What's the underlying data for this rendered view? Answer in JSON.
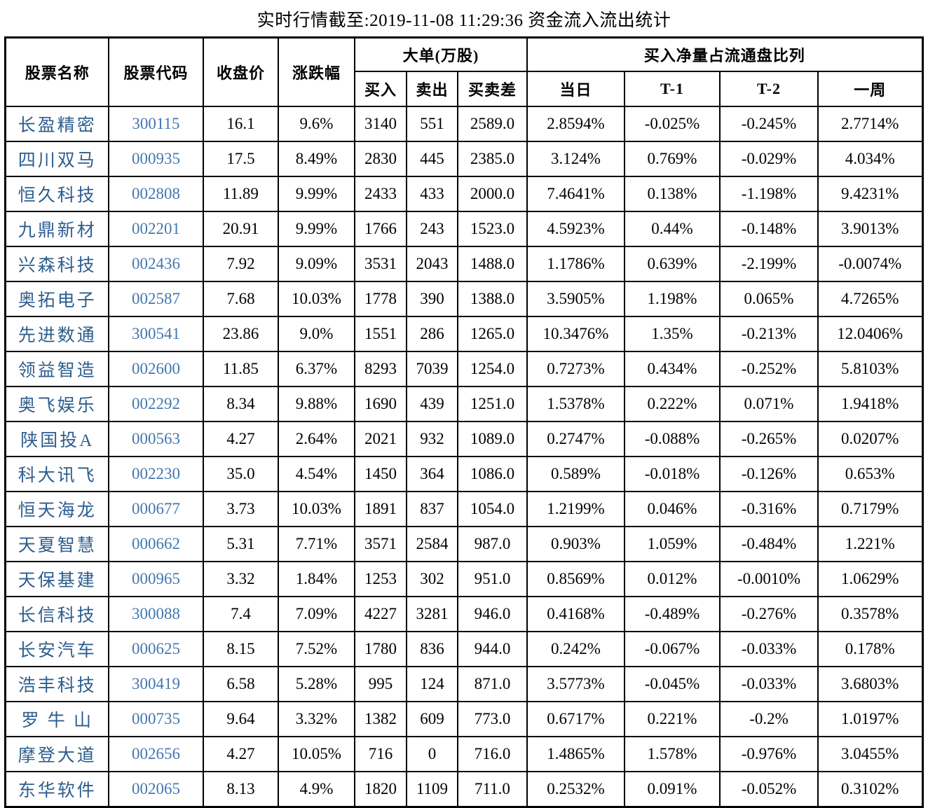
{
  "title": "实时行情截至:2019-11-08 11:29:36 资金流入流出统计",
  "colors": {
    "stock_name_text": "#2d5e8e",
    "stock_code_text": "#4377b0",
    "table_border": "#000000",
    "data_text": "#000000",
    "background": "#ffffff"
  },
  "table": {
    "header": {
      "stock_name": "股票名称",
      "stock_code": "股票代码",
      "close_price": "收盘价",
      "change_pct": "涨跌幅",
      "big_order_group": "大单(万股)",
      "buy": "买入",
      "sell": "卖出",
      "buy_sell_diff": "买卖差",
      "net_buy_group": "买入净量占流通盘比列",
      "today": "当日",
      "t_minus_1": "T-1",
      "t_minus_2": "T-2",
      "week": "一周"
    },
    "rows": [
      [
        "长盈精密",
        "300115",
        "16.1",
        "9.6%",
        "3140",
        "551",
        "2589.0",
        "2.8594%",
        "-0.025%",
        "-0.245%",
        "2.7714%"
      ],
      [
        "四川双马",
        "000935",
        "17.5",
        "8.49%",
        "2830",
        "445",
        "2385.0",
        "3.124%",
        "0.769%",
        "-0.029%",
        "4.034%"
      ],
      [
        "恒久科技",
        "002808",
        "11.89",
        "9.99%",
        "2433",
        "433",
        "2000.0",
        "7.4641%",
        "0.138%",
        "-1.198%",
        "9.4231%"
      ],
      [
        "九鼎新材",
        "002201",
        "20.91",
        "9.99%",
        "1766",
        "243",
        "1523.0",
        "4.5923%",
        "0.44%",
        "-0.148%",
        "3.9013%"
      ],
      [
        "兴森科技",
        "002436",
        "7.92",
        "9.09%",
        "3531",
        "2043",
        "1488.0",
        "1.1786%",
        "0.639%",
        "-2.199%",
        "-0.0074%"
      ],
      [
        "奥拓电子",
        "002587",
        "7.68",
        "10.03%",
        "1778",
        "390",
        "1388.0",
        "3.5905%",
        "1.198%",
        "0.065%",
        "4.7265%"
      ],
      [
        "先进数通",
        "300541",
        "23.86",
        "9.0%",
        "1551",
        "286",
        "1265.0",
        "10.3476%",
        "1.35%",
        "-0.213%",
        "12.0406%"
      ],
      [
        "领益智造",
        "002600",
        "11.85",
        "6.37%",
        "8293",
        "7039",
        "1254.0",
        "0.7273%",
        "0.434%",
        "-0.252%",
        "5.8103%"
      ],
      [
        "奥飞娱乐",
        "002292",
        "8.34",
        "9.88%",
        "1690",
        "439",
        "1251.0",
        "1.5378%",
        "0.222%",
        "0.071%",
        "1.9418%"
      ],
      [
        "陕国投A",
        "000563",
        "4.27",
        "2.64%",
        "2021",
        "932",
        "1089.0",
        "0.2747%",
        "-0.088%",
        "-0.265%",
        "0.0207%"
      ],
      [
        "科大讯飞",
        "002230",
        "35.0",
        "4.54%",
        "1450",
        "364",
        "1086.0",
        "0.589%",
        "-0.018%",
        "-0.126%",
        "0.653%"
      ],
      [
        "恒天海龙",
        "000677",
        "3.73",
        "10.03%",
        "1891",
        "837",
        "1054.0",
        "1.2199%",
        "0.046%",
        "-0.316%",
        "0.7179%"
      ],
      [
        "天夏智慧",
        "000662",
        "5.31",
        "7.71%",
        "3571",
        "2584",
        "987.0",
        "0.903%",
        "1.059%",
        "-0.484%",
        "1.221%"
      ],
      [
        "天保基建",
        "000965",
        "3.32",
        "1.84%",
        "1253",
        "302",
        "951.0",
        "0.8569%",
        "0.012%",
        "-0.0010%",
        "1.0629%"
      ],
      [
        "长信科技",
        "300088",
        "7.4",
        "7.09%",
        "4227",
        "3281",
        "946.0",
        "0.4168%",
        "-0.489%",
        "-0.276%",
        "0.3578%"
      ],
      [
        "长安汽车",
        "000625",
        "8.15",
        "7.52%",
        "1780",
        "836",
        "944.0",
        "0.242%",
        "-0.067%",
        "-0.033%",
        "0.178%"
      ],
      [
        "浩丰科技",
        "300419",
        "6.58",
        "5.28%",
        "995",
        "124",
        "871.0",
        "3.5773%",
        "-0.045%",
        "-0.033%",
        "3.6803%"
      ],
      [
        "罗 牛 山",
        "000735",
        "9.64",
        "3.32%",
        "1382",
        "609",
        "773.0",
        "0.6717%",
        "0.221%",
        "-0.2%",
        "1.0197%"
      ],
      [
        "摩登大道",
        "002656",
        "4.27",
        "10.05%",
        "716",
        "0",
        "716.0",
        "1.4865%",
        "1.578%",
        "-0.976%",
        "3.0455%"
      ],
      [
        "东华软件",
        "002065",
        "8.13",
        "4.9%",
        "1820",
        "1109",
        "711.0",
        "0.2532%",
        "0.091%",
        "-0.052%",
        "0.3102%"
      ]
    ]
  }
}
